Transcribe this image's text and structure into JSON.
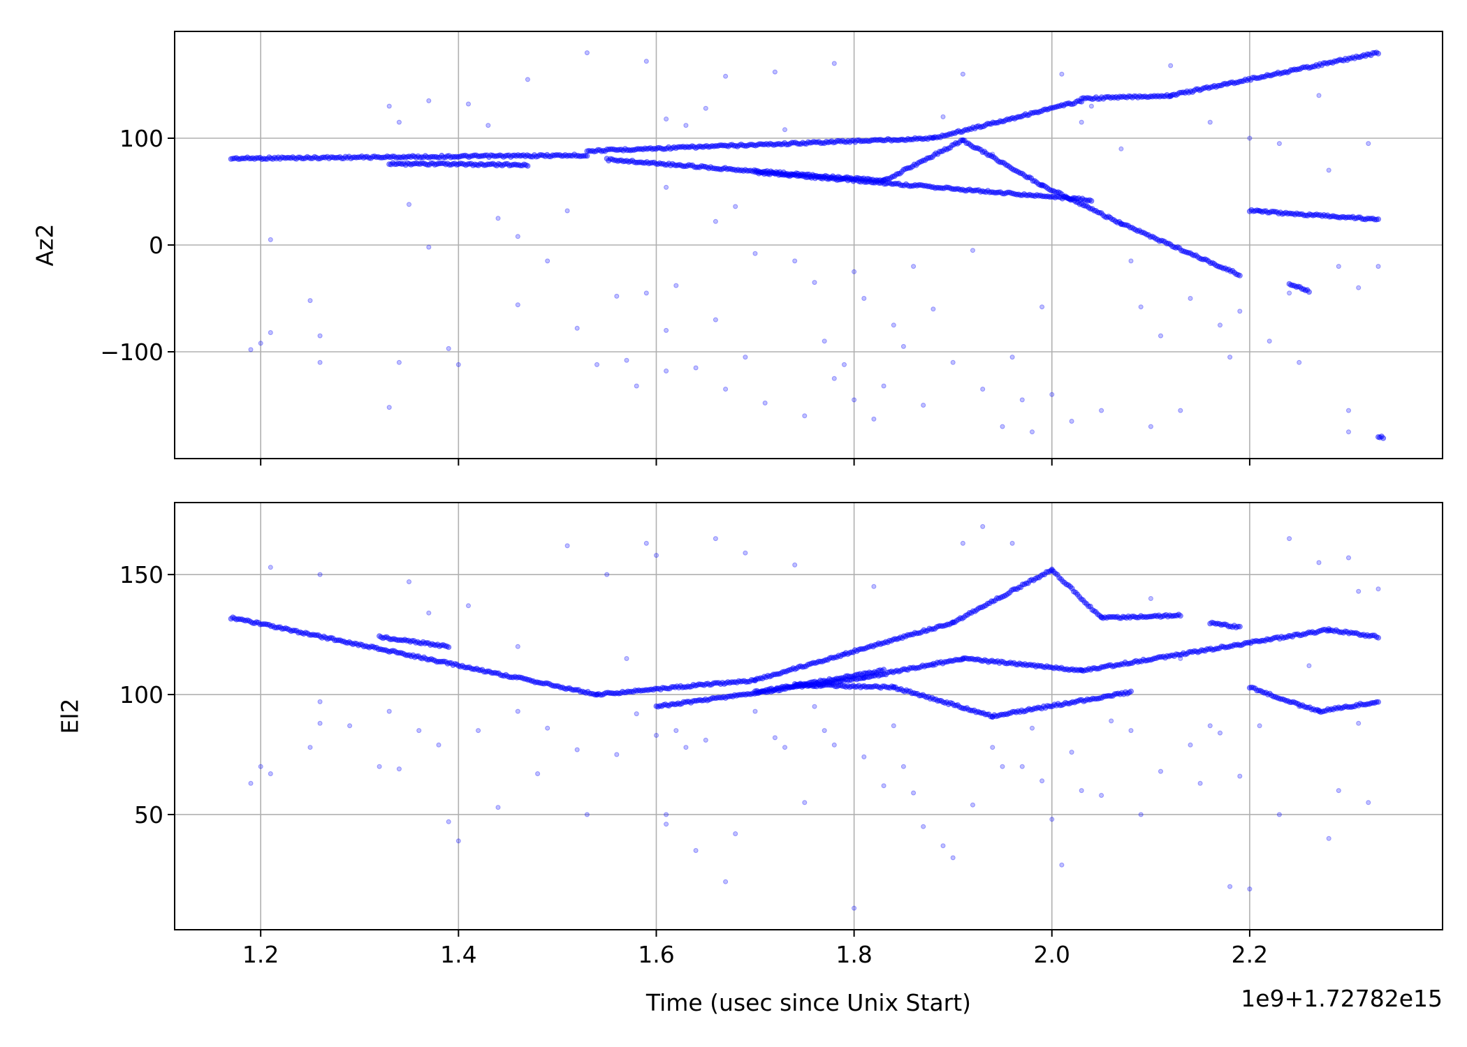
{
  "chart_data": [
    {
      "type": "scatter",
      "ylabel": "Az2",
      "ylim": [
        -200,
        200
      ],
      "xlim": [
        1.113,
        2.395
      ],
      "yticks": [
        100,
        0,
        -100
      ],
      "ytick_labels": [
        "100",
        "0",
        "−100"
      ],
      "grid": true,
      "color": "#0000ff",
      "x_tick_labels_shown": false,
      "tracks": [
        {
          "x_start": 1.17,
          "x_end": 1.53,
          "y_start": 81,
          "y_end": 84
        },
        {
          "x_start": 1.53,
          "x_end": 1.88,
          "y_start": 88,
          "y_end": 100
        },
        {
          "x_start": 1.88,
          "x_end": 2.03,
          "y_start": 100,
          "y_end": 135
        },
        {
          "x_start": 2.03,
          "x_end": 2.12,
          "y_start": 137,
          "y_end": 140
        },
        {
          "x_start": 2.12,
          "x_end": 2.33,
          "y_start": 140,
          "y_end": 180
        },
        {
          "x_start": 1.55,
          "x_end": 1.83,
          "y_start": 80,
          "y_end": 60
        },
        {
          "x_start": 1.83,
          "x_end": 1.91,
          "y_start": 60,
          "y_end": 98
        },
        {
          "x_start": 1.91,
          "x_end": 1.99,
          "y_start": 98,
          "y_end": 56
        },
        {
          "x_start": 1.99,
          "x_end": 2.07,
          "y_start": 56,
          "y_end": 20
        },
        {
          "x_start": 2.07,
          "x_end": 2.19,
          "y_start": 20,
          "y_end": -28
        },
        {
          "x_start": 1.33,
          "x_end": 1.47,
          "y_start": 76,
          "y_end": 75
        },
        {
          "x_start": 1.7,
          "x_end": 2.04,
          "y_start": 68,
          "y_end": 42
        },
        {
          "x_start": 2.2,
          "x_end": 2.33,
          "y_start": 32,
          "y_end": 24
        },
        {
          "x_start": 2.24,
          "x_end": 2.26,
          "y_start": -36,
          "y_end": -43
        },
        {
          "x_start": 2.33,
          "x_end": 2.335,
          "y_start": -180,
          "y_end": -180
        }
      ],
      "scatter_points": [
        [
          1.19,
          -98
        ],
        [
          1.2,
          -92
        ],
        [
          1.21,
          5
        ],
        [
          1.21,
          -82
        ],
        [
          1.25,
          -52
        ],
        [
          1.26,
          -85
        ],
        [
          1.26,
          -110
        ],
        [
          1.33,
          130
        ],
        [
          1.33,
          -152
        ],
        [
          1.34,
          115
        ],
        [
          1.34,
          -110
        ],
        [
          1.35,
          38
        ],
        [
          1.37,
          135
        ],
        [
          1.37,
          -2
        ],
        [
          1.39,
          -97
        ],
        [
          1.4,
          -112
        ],
        [
          1.41,
          132
        ],
        [
          1.43,
          112
        ],
        [
          1.44,
          25
        ],
        [
          1.46,
          8
        ],
        [
          1.46,
          -56
        ],
        [
          1.47,
          155
        ],
        [
          1.49,
          -15
        ],
        [
          1.51,
          32
        ],
        [
          1.52,
          -78
        ],
        [
          1.53,
          180
        ],
        [
          1.54,
          -112
        ],
        [
          1.56,
          -48
        ],
        [
          1.57,
          -108
        ],
        [
          1.58,
          -132
        ],
        [
          1.59,
          172
        ],
        [
          1.59,
          -45
        ],
        [
          1.61,
          -80
        ],
        [
          1.61,
          -118
        ],
        [
          1.61,
          118
        ],
        [
          1.61,
          54
        ],
        [
          1.62,
          -38
        ],
        [
          1.63,
          112
        ],
        [
          1.64,
          -115
        ],
        [
          1.65,
          128
        ],
        [
          1.66,
          22
        ],
        [
          1.66,
          -70
        ],
        [
          1.67,
          158
        ],
        [
          1.67,
          -135
        ],
        [
          1.68,
          36
        ],
        [
          1.69,
          -105
        ],
        [
          1.7,
          -8
        ],
        [
          1.71,
          -148
        ],
        [
          1.72,
          162
        ],
        [
          1.73,
          108
        ],
        [
          1.74,
          -15
        ],
        [
          1.75,
          -160
        ],
        [
          1.76,
          -35
        ],
        [
          1.77,
          -90
        ],
        [
          1.78,
          170
        ],
        [
          1.78,
          -125
        ],
        [
          1.79,
          -112
        ],
        [
          1.8,
          -145
        ],
        [
          1.8,
          -25
        ],
        [
          1.81,
          -50
        ],
        [
          1.82,
          -163
        ],
        [
          1.83,
          -132
        ],
        [
          1.84,
          -75
        ],
        [
          1.85,
          -95
        ],
        [
          1.86,
          -20
        ],
        [
          1.87,
          -150
        ],
        [
          1.88,
          -60
        ],
        [
          1.89,
          120
        ],
        [
          1.9,
          -110
        ],
        [
          1.91,
          160
        ],
        [
          1.92,
          -5
        ],
        [
          1.93,
          -135
        ],
        [
          1.94,
          85
        ],
        [
          1.95,
          -170
        ],
        [
          1.96,
          -105
        ],
        [
          1.97,
          -145
        ],
        [
          1.98,
          -175
        ],
        [
          1.99,
          -58
        ],
        [
          2.0,
          -140
        ],
        [
          2.01,
          160
        ],
        [
          2.02,
          -165
        ],
        [
          2.03,
          115
        ],
        [
          2.04,
          130
        ],
        [
          2.05,
          -155
        ],
        [
          2.07,
          90
        ],
        [
          2.08,
          -15
        ],
        [
          2.09,
          -58
        ],
        [
          2.1,
          -170
        ],
        [
          2.11,
          -85
        ],
        [
          2.12,
          168
        ],
        [
          2.13,
          -155
        ],
        [
          2.14,
          -50
        ],
        [
          2.16,
          115
        ],
        [
          2.17,
          -75
        ],
        [
          2.18,
          -105
        ],
        [
          2.19,
          -62
        ],
        [
          2.2,
          100
        ],
        [
          2.21,
          32
        ],
        [
          2.22,
          -90
        ],
        [
          2.23,
          95
        ],
        [
          2.24,
          -45
        ],
        [
          2.25,
          -110
        ],
        [
          2.27,
          140
        ],
        [
          2.28,
          70
        ],
        [
          2.29,
          -20
        ],
        [
          2.3,
          -155
        ],
        [
          2.3,
          -175
        ],
        [
          2.31,
          -40
        ],
        [
          2.32,
          95
        ],
        [
          2.33,
          -20
        ]
      ]
    },
    {
      "type": "scatter",
      "ylabel": "El2",
      "xlabel": "Time (usec since Unix Start)",
      "offset_text": "1e9+1.72782e15",
      "ylim": [
        2,
        180
      ],
      "xlim": [
        1.113,
        2.395
      ],
      "xticks": [
        1.2,
        1.4,
        1.6,
        1.8,
        2.0,
        2.2
      ],
      "xtick_labels": [
        "1.2",
        "1.4",
        "1.6",
        "1.8",
        "2.0",
        "2.2"
      ],
      "yticks": [
        150,
        100,
        50
      ],
      "ytick_labels": [
        "150",
        "100",
        "50"
      ],
      "grid": true,
      "color": "#0000ff",
      "tracks": [
        {
          "x_start": 1.17,
          "x_end": 1.54,
          "y_start": 132,
          "y_end": 100
        },
        {
          "x_start": 1.54,
          "x_end": 1.7,
          "y_start": 100,
          "y_end": 106
        },
        {
          "x_start": 1.7,
          "x_end": 1.9,
          "y_start": 106,
          "y_end": 130
        },
        {
          "x_start": 1.9,
          "x_end": 2.0,
          "y_start": 130,
          "y_end": 152
        },
        {
          "x_start": 2.0,
          "x_end": 2.05,
          "y_start": 152,
          "y_end": 132
        },
        {
          "x_start": 2.05,
          "x_end": 2.13,
          "y_start": 132,
          "y_end": 133
        },
        {
          "x_start": 2.16,
          "x_end": 2.19,
          "y_start": 130,
          "y_end": 128
        },
        {
          "x_start": 1.6,
          "x_end": 1.81,
          "y_start": 95,
          "y_end": 107
        },
        {
          "x_start": 1.81,
          "x_end": 1.91,
          "y_start": 107,
          "y_end": 115
        },
        {
          "x_start": 1.91,
          "x_end": 2.03,
          "y_start": 115,
          "y_end": 110
        },
        {
          "x_start": 2.03,
          "x_end": 2.28,
          "y_start": 110,
          "y_end": 127
        },
        {
          "x_start": 2.28,
          "x_end": 2.33,
          "y_start": 127,
          "y_end": 124
        },
        {
          "x_start": 1.74,
          "x_end": 1.84,
          "y_start": 104,
          "y_end": 103
        },
        {
          "x_start": 1.84,
          "x_end": 1.94,
          "y_start": 103,
          "y_end": 91
        },
        {
          "x_start": 1.94,
          "x_end": 2.08,
          "y_start": 91,
          "y_end": 101
        },
        {
          "x_start": 2.2,
          "x_end": 2.27,
          "y_start": 103,
          "y_end": 93
        },
        {
          "x_start": 2.27,
          "x_end": 2.33,
          "y_start": 93,
          "y_end": 97
        },
        {
          "x_start": 1.32,
          "x_end": 1.39,
          "y_start": 124,
          "y_end": 120
        },
        {
          "x_start": 1.7,
          "x_end": 1.83,
          "y_start": 101,
          "y_end": 110
        }
      ],
      "scatter_points": [
        [
          1.19,
          63
        ],
        [
          1.2,
          70
        ],
        [
          1.21,
          153
        ],
        [
          1.21,
          67
        ],
        [
          1.25,
          78
        ],
        [
          1.26,
          97
        ],
        [
          1.26,
          88
        ],
        [
          1.26,
          150
        ],
        [
          1.29,
          87
        ],
        [
          1.32,
          70
        ],
        [
          1.33,
          93
        ],
        [
          1.34,
          69
        ],
        [
          1.35,
          147
        ],
        [
          1.36,
          85
        ],
        [
          1.37,
          134
        ],
        [
          1.38,
          79
        ],
        [
          1.39,
          47
        ],
        [
          1.4,
          39
        ],
        [
          1.41,
          137
        ],
        [
          1.42,
          85
        ],
        [
          1.44,
          53
        ],
        [
          1.46,
          120
        ],
        [
          1.46,
          93
        ],
        [
          1.48,
          67
        ],
        [
          1.49,
          86
        ],
        [
          1.51,
          162
        ],
        [
          1.52,
          77
        ],
        [
          1.53,
          50
        ],
        [
          1.55,
          150
        ],
        [
          1.56,
          75
        ],
        [
          1.57,
          115
        ],
        [
          1.58,
          92
        ],
        [
          1.59,
          163
        ],
        [
          1.6,
          83
        ],
        [
          1.6,
          158
        ],
        [
          1.61,
          50
        ],
        [
          1.61,
          46
        ],
        [
          1.62,
          85
        ],
        [
          1.63,
          78
        ],
        [
          1.64,
          35
        ],
        [
          1.65,
          81
        ],
        [
          1.66,
          165
        ],
        [
          1.67,
          22
        ],
        [
          1.68,
          42
        ],
        [
          1.69,
          159
        ],
        [
          1.7,
          93
        ],
        [
          1.72,
          82
        ],
        [
          1.73,
          78
        ],
        [
          1.74,
          154
        ],
        [
          1.75,
          55
        ],
        [
          1.76,
          95
        ],
        [
          1.77,
          85
        ],
        [
          1.78,
          79
        ],
        [
          1.79,
          117
        ],
        [
          1.8,
          11
        ],
        [
          1.81,
          74
        ],
        [
          1.82,
          145
        ],
        [
          1.83,
          62
        ],
        [
          1.84,
          87
        ],
        [
          1.85,
          70
        ],
        [
          1.86,
          59
        ],
        [
          1.87,
          45
        ],
        [
          1.88,
          112
        ],
        [
          1.89,
          37
        ],
        [
          1.9,
          32
        ],
        [
          1.91,
          163
        ],
        [
          1.92,
          54
        ],
        [
          1.93,
          170
        ],
        [
          1.94,
          78
        ],
        [
          1.95,
          70
        ],
        [
          1.96,
          163
        ],
        [
          1.97,
          70
        ],
        [
          1.98,
          86
        ],
        [
          1.99,
          64
        ],
        [
          2.0,
          48
        ],
        [
          2.01,
          29
        ],
        [
          2.02,
          76
        ],
        [
          2.03,
          60
        ],
        [
          2.05,
          58
        ],
        [
          2.06,
          89
        ],
        [
          2.08,
          85
        ],
        [
          2.09,
          50
        ],
        [
          2.1,
          140
        ],
        [
          2.11,
          68
        ],
        [
          2.13,
          115
        ],
        [
          2.14,
          79
        ],
        [
          2.15,
          63
        ],
        [
          2.16,
          87
        ],
        [
          2.17,
          84
        ],
        [
          2.18,
          20
        ],
        [
          2.19,
          66
        ],
        [
          2.2,
          19
        ],
        [
          2.21,
          87
        ],
        [
          2.23,
          50
        ],
        [
          2.24,
          165
        ],
        [
          2.25,
          95
        ],
        [
          2.26,
          112
        ],
        [
          2.27,
          155
        ],
        [
          2.28,
          40
        ],
        [
          2.29,
          60
        ],
        [
          2.3,
          157
        ],
        [
          2.31,
          143
        ],
        [
          2.31,
          88
        ],
        [
          2.32,
          55
        ],
        [
          2.33,
          144
        ]
      ]
    }
  ]
}
